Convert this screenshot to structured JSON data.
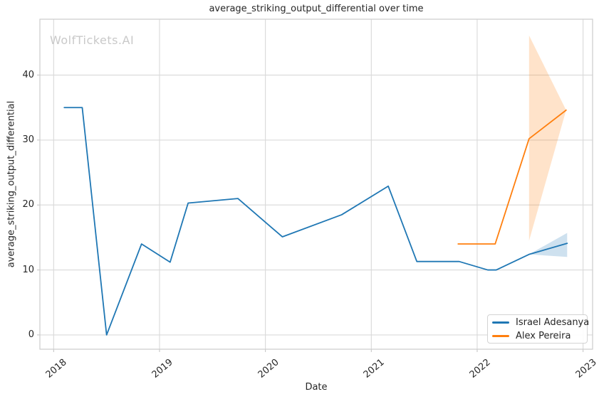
{
  "figure": {
    "watermark": "WolfTickets.AI"
  },
  "colors": {
    "background": "#ffffff",
    "grid": "#d9d9d9",
    "spine": "#cccccc",
    "tick_mark": "#c2c2c2",
    "text": "#262626",
    "watermark": "#c9c9c9",
    "series_blue": "#1f77b4",
    "series_orange": "#ff7f0e"
  },
  "chart_data": {
    "type": "line",
    "title": "average_striking_output_differential over time",
    "xlabel": "Date",
    "ylabel": "average_striking_output_differential",
    "x_tick_values": [
      2018,
      2019,
      2020,
      2021,
      2022,
      2023
    ],
    "x_tick_labels": [
      "2018",
      "2019",
      "2020",
      "2021",
      "2022",
      "2023"
    ],
    "y_tick_values": [
      0,
      10,
      20,
      30,
      40
    ],
    "y_tick_labels": [
      "0",
      "10",
      "20",
      "30",
      "40"
    ],
    "xlim": [
      2017.87,
      2023.09
    ],
    "ylim": [
      -2.2,
      48.6
    ],
    "grid": true,
    "legend_position": "lower right",
    "band_alpha": 0.22,
    "series": [
      {
        "name": "Israel Adesanya",
        "color": "#1f77b4",
        "x": [
          2018.1,
          2018.27,
          2018.5,
          2018.83,
          2019.1,
          2019.27,
          2019.74,
          2020.16,
          2020.72,
          2021.16,
          2021.43,
          2021.83,
          2022.1,
          2022.18,
          2022.49,
          2022.85
        ],
        "y": [
          35,
          35,
          0,
          14,
          11.2,
          20.3,
          21,
          15.1,
          18.5,
          22.9,
          11.3,
          11.3,
          10,
          10,
          12.4,
          14.1
        ],
        "ci_band": {
          "x": [
            2022.49,
            2022.85
          ],
          "upper": [
            12.4,
            15.7
          ],
          "lower": [
            12.4,
            12.0
          ]
        }
      },
      {
        "name": "Alex Pereira",
        "color": "#ff7f0e",
        "x": [
          2021.82,
          2022.17,
          2022.49,
          2022.84
        ],
        "y": [
          14,
          14,
          30.2,
          34.6
        ],
        "ci_band": {
          "x": [
            2022.49,
            2022.84
          ],
          "upper": [
            46.1,
            34.6
          ],
          "lower": [
            14.5,
            34.6
          ]
        }
      }
    ]
  }
}
